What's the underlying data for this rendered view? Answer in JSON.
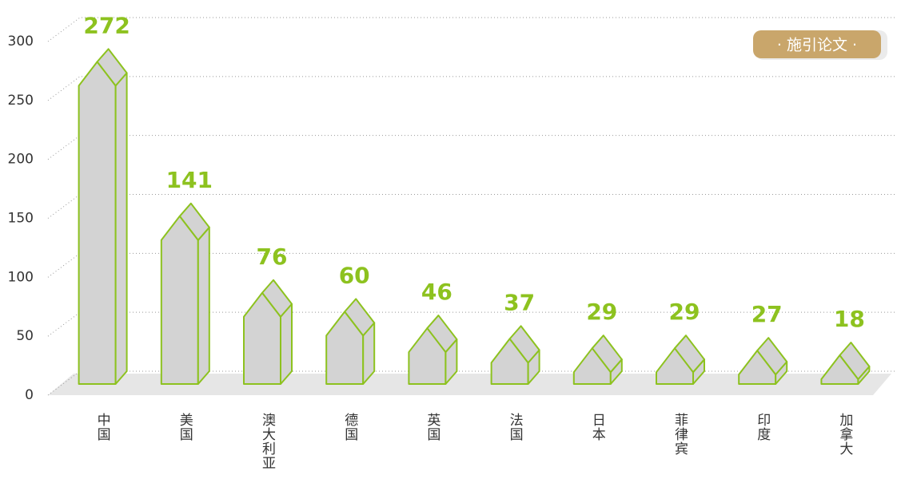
{
  "chart_data": {
    "type": "bar",
    "annotation": "· 施引论文 ·",
    "categories": [
      "中国",
      "美国",
      "澳大利亚",
      "德国",
      "英国",
      "法国",
      "日本",
      "菲律宾",
      "印度",
      "加拿大"
    ],
    "values": [
      272,
      141,
      76,
      60,
      46,
      37,
      29,
      29,
      27,
      18
    ],
    "color": "#d3d3d3",
    "edge_color": "#8dc21f",
    "label_color": "#8dc21f",
    "ylim": [
      0,
      300
    ],
    "yticks": [
      0,
      50,
      100,
      150,
      200,
      250,
      300
    ],
    "grid": true
  }
}
